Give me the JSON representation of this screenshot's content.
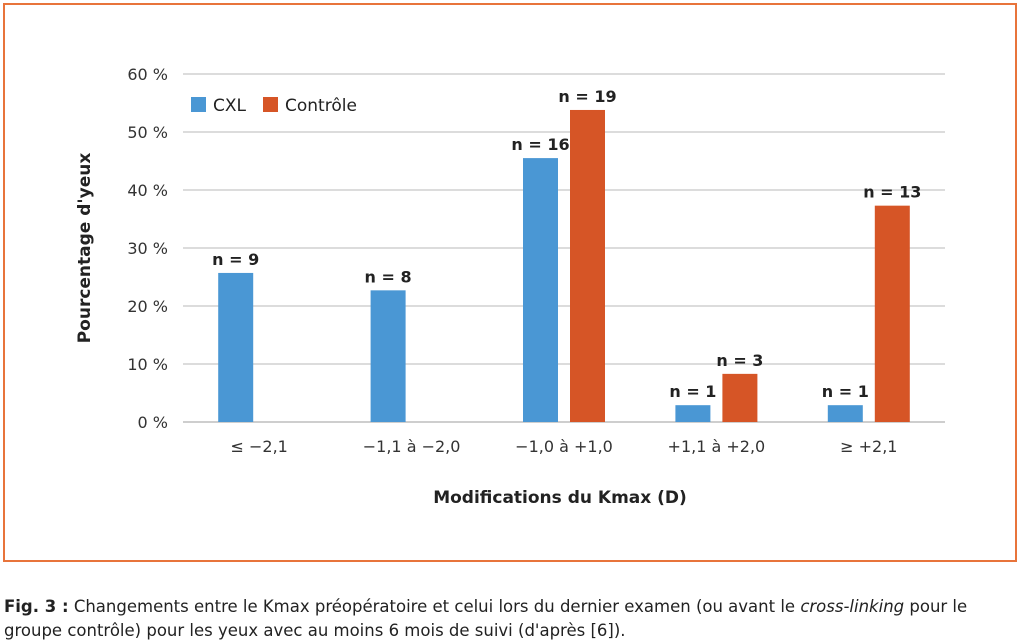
{
  "chart_data": {
    "type": "bar",
    "categories": [
      "≤ −2,1",
      "−1,1 à −2,0",
      "−1,0 à +1,0",
      "+1,1 à +2,0",
      "≥ +2,1"
    ],
    "series": [
      {
        "name": "CXL",
        "values": [
          25.7,
          22.7,
          45.5,
          2.9,
          2.9
        ],
        "labels": [
          "n = 9",
          "n = 8",
          "n = 16",
          "n = 1",
          "n = 1"
        ],
        "color": "#4a97d4"
      },
      {
        "name": "Contrôle",
        "values": [
          0,
          0,
          53.8,
          8.3,
          37.3
        ],
        "labels": [
          "",
          "",
          "n = 19",
          "n = 3",
          "n = 13"
        ],
        "color": "#d65526"
      }
    ],
    "yticks": [
      "0 %",
      "10 %",
      "20 %",
      "30 %",
      "40 %",
      "50 %",
      "60 %"
    ],
    "ylim": [
      0,
      60
    ],
    "ylabel": "Pourcentage d'yeux",
    "xlabel": "Modifications du Kmax (D)",
    "grid": true,
    "legend": "top-left"
  },
  "caption": {
    "label": "Fig. 3 :",
    "text_before": " Changements entre le Kmax préopératoire et celui lors du dernier examen (ou avant le ",
    "italic": "cross-linking",
    "text_after": " pour le groupe contrôle) pour les yeux avec au moins 6 mois de suivi (d'après [6])."
  }
}
